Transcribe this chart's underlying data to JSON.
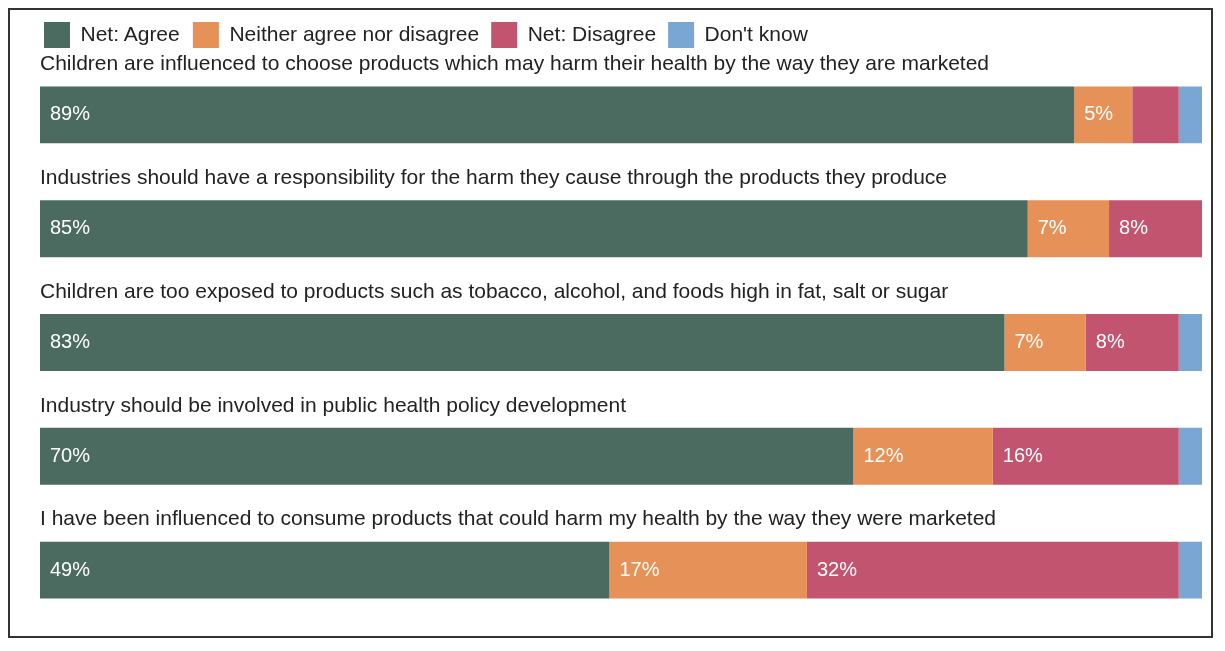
{
  "chart_data": {
    "type": "bar",
    "orientation": "horizontal",
    "stacked": true,
    "legend": "top left",
    "tick_labels": false,
    "grid": false,
    "xlim": [
      0,
      100
    ],
    "categories": [
      "Children are influenced to choose products which may harm their health by the way they are marketed",
      "Industries should have a responsibility for the harm they cause through the products they produce",
      "Children are too exposed to products such as tobacco, alcohol, and foods high in fat, salt or sugar",
      "Industry should be involved in public health policy development",
      "I have been influenced to consume products that could harm my health by the way they were marketed"
    ],
    "series": [
      {
        "name": "Net: Agree",
        "color": "#4b6b61",
        "values": [
          89,
          85,
          83,
          70,
          49
        ],
        "value_labels": [
          "89%",
          "85%",
          "83%",
          "70%",
          "49%"
        ]
      },
      {
        "name": "Neither agree nor disagree",
        "color": "#e69158",
        "values": [
          5,
          7,
          7,
          12,
          17
        ],
        "value_labels": [
          "5%",
          "7%",
          "7%",
          "12%",
          "17%"
        ]
      },
      {
        "name": "Net: Disagree",
        "color": "#c2546f",
        "values": [
          4,
          8,
          8,
          16,
          32
        ],
        "value_labels": [
          null,
          "8%",
          "8%",
          "16%",
          "32%"
        ]
      },
      {
        "name": "Don't know",
        "color": "#7aa6d4",
        "values": [
          2,
          0,
          2,
          2,
          2
        ],
        "value_labels": [
          null,
          null,
          null,
          null,
          null
        ]
      }
    ]
  }
}
